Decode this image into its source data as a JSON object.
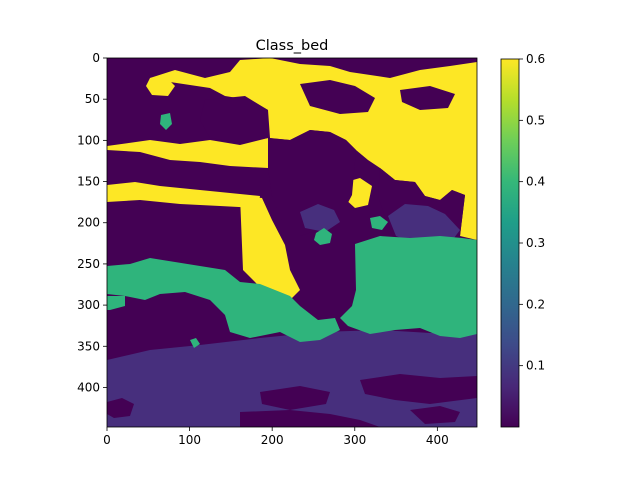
{
  "chart_data": {
    "type": "heatmap",
    "title": "Class_bed",
    "xlabel": "",
    "ylabel": "",
    "image_size": [
      448,
      448
    ],
    "xlim": [
      0,
      448
    ],
    "ylim": [
      448,
      0
    ],
    "x_ticks": [
      0,
      100,
      200,
      300,
      400
    ],
    "y_ticks": [
      0,
      50,
      100,
      150,
      200,
      250,
      300,
      350,
      400
    ],
    "colormap": "viridis",
    "color_range": [
      0.0,
      0.6
    ],
    "colorbar_ticks": [
      0.1,
      0.2,
      0.3,
      0.4,
      0.5,
      0.6
    ],
    "levels": [
      {
        "value": 0.0,
        "color": "#440154"
      },
      {
        "value": 0.08,
        "color": "#472f7d"
      },
      {
        "value": 0.4,
        "color": "#2fb47c"
      },
      {
        "value": 0.6,
        "color": "#fde725"
      }
    ],
    "grid": false,
    "legend": "colorbar-right"
  },
  "colormap_stops": [
    "#440154",
    "#482878",
    "#3e4a89",
    "#31688e",
    "#26828e",
    "#1f9e89",
    "#35b779",
    "#6ece58",
    "#b5de2b",
    "#fde725"
  ]
}
